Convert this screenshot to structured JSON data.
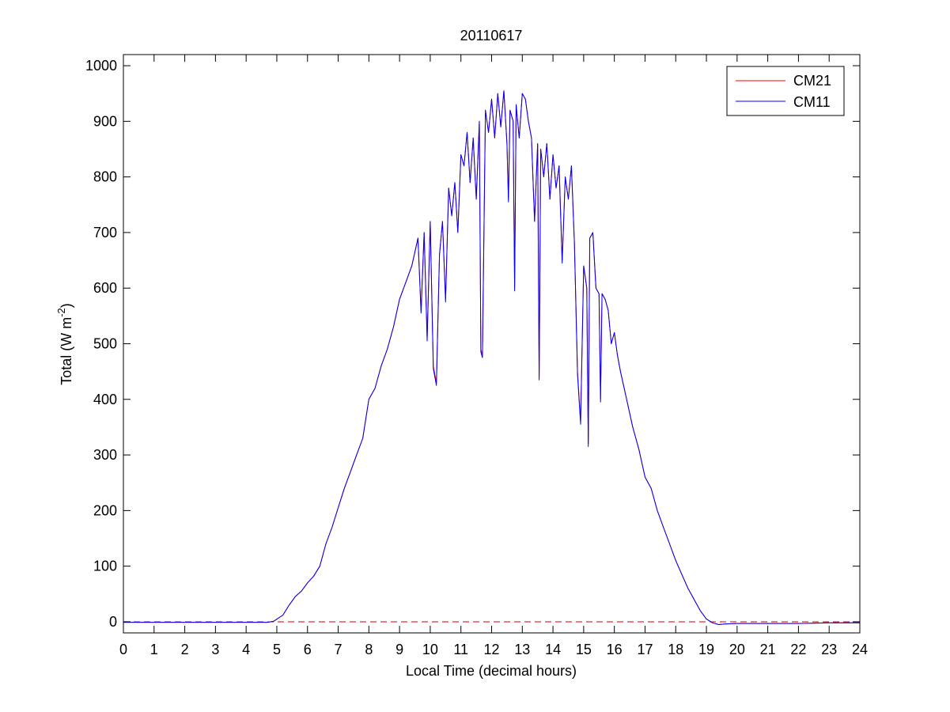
{
  "chart_data": {
    "type": "line",
    "title": "20110617",
    "xlabel": "Local Time (decimal hours)",
    "ylabel": {
      "base": "Total (W m",
      "superscript": "-2",
      "suffix": ")"
    },
    "xlim": [
      0,
      24
    ],
    "ylim": [
      -20,
      1020
    ],
    "x_ticks": [
      "0",
      "1",
      "2",
      "3",
      "4",
      "5",
      "6",
      "7",
      "8",
      "9",
      "10",
      "11",
      "12",
      "13",
      "14",
      "15",
      "16",
      "17",
      "18",
      "19",
      "20",
      "21",
      "22",
      "23",
      "24"
    ],
    "y_ticks": [
      "0",
      "100",
      "200",
      "300",
      "400",
      "500",
      "600",
      "700",
      "800",
      "900",
      "1000"
    ],
    "grid": false,
    "legend_position": "top-right",
    "series": [
      {
        "name": "CM21",
        "color": "#ff0000",
        "points": [
          [
            0,
            -1
          ],
          [
            1,
            -1
          ],
          [
            2,
            -1
          ],
          [
            3,
            -1
          ],
          [
            4,
            -1
          ],
          [
            4.7,
            -1
          ],
          [
            4.9,
            1
          ],
          [
            5.2,
            12
          ],
          [
            5.4,
            30
          ],
          [
            5.6,
            45
          ],
          [
            5.8,
            55
          ],
          [
            6.0,
            70
          ],
          [
            6.2,
            82
          ],
          [
            6.4,
            100
          ],
          [
            6.6,
            140
          ],
          [
            6.8,
            170
          ],
          [
            7.0,
            205
          ],
          [
            7.2,
            240
          ],
          [
            7.4,
            270
          ],
          [
            7.6,
            300
          ],
          [
            7.8,
            330
          ],
          [
            8.0,
            400
          ],
          [
            8.2,
            420
          ],
          [
            8.4,
            460
          ],
          [
            8.6,
            490
          ],
          [
            8.8,
            530
          ],
          [
            9.0,
            580
          ],
          [
            9.2,
            610
          ],
          [
            9.4,
            640
          ],
          [
            9.6,
            690
          ],
          [
            9.7,
            560
          ],
          [
            9.8,
            700
          ],
          [
            9.9,
            510
          ],
          [
            10.0,
            720
          ],
          [
            10.1,
            460
          ],
          [
            10.2,
            430
          ],
          [
            10.3,
            660
          ],
          [
            10.4,
            720
          ],
          [
            10.5,
            580
          ],
          [
            10.6,
            780
          ],
          [
            10.7,
            730
          ],
          [
            10.8,
            790
          ],
          [
            10.9,
            700
          ],
          [
            11.0,
            840
          ],
          [
            11.1,
            820
          ],
          [
            11.2,
            880
          ],
          [
            11.3,
            790
          ],
          [
            11.4,
            870
          ],
          [
            11.5,
            760
          ],
          [
            11.6,
            900
          ],
          [
            11.65,
            490
          ],
          [
            11.7,
            480
          ],
          [
            11.8,
            920
          ],
          [
            11.9,
            880
          ],
          [
            12.0,
            940
          ],
          [
            12.1,
            870
          ],
          [
            12.2,
            950
          ],
          [
            12.3,
            890
          ],
          [
            12.4,
            955
          ],
          [
            12.5,
            860
          ],
          [
            12.55,
            760
          ],
          [
            12.6,
            920
          ],
          [
            12.7,
            900
          ],
          [
            12.75,
            600
          ],
          [
            12.8,
            930
          ],
          [
            12.9,
            870
          ],
          [
            13.0,
            950
          ],
          [
            13.1,
            940
          ],
          [
            13.2,
            900
          ],
          [
            13.3,
            870
          ],
          [
            13.4,
            720
          ],
          [
            13.5,
            860
          ],
          [
            13.55,
            440
          ],
          [
            13.6,
            850
          ],
          [
            13.7,
            800
          ],
          [
            13.8,
            860
          ],
          [
            13.9,
            760
          ],
          [
            14.0,
            840
          ],
          [
            14.1,
            780
          ],
          [
            14.2,
            820
          ],
          [
            14.3,
            650
          ],
          [
            14.4,
            800
          ],
          [
            14.5,
            760
          ],
          [
            14.6,
            820
          ],
          [
            14.7,
            680
          ],
          [
            14.8,
            450
          ],
          [
            14.9,
            360
          ],
          [
            15.0,
            640
          ],
          [
            15.1,
            600
          ],
          [
            15.15,
            320
          ],
          [
            15.2,
            690
          ],
          [
            15.3,
            700
          ],
          [
            15.4,
            600
          ],
          [
            15.5,
            590
          ],
          [
            15.55,
            400
          ],
          [
            15.6,
            590
          ],
          [
            15.7,
            580
          ],
          [
            15.8,
            560
          ],
          [
            15.9,
            500
          ],
          [
            16.0,
            520
          ],
          [
            16.1,
            480
          ],
          [
            16.2,
            450
          ],
          [
            16.4,
            400
          ],
          [
            16.6,
            350
          ],
          [
            16.8,
            310
          ],
          [
            17.0,
            260
          ],
          [
            17.2,
            240
          ],
          [
            17.4,
            200
          ],
          [
            17.6,
            170
          ],
          [
            17.8,
            140
          ],
          [
            18.0,
            110
          ],
          [
            18.2,
            85
          ],
          [
            18.4,
            60
          ],
          [
            18.6,
            40
          ],
          [
            18.8,
            20
          ],
          [
            19.0,
            5
          ],
          [
            19.2,
            -2
          ],
          [
            19.4,
            -5
          ],
          [
            19.6,
            -4
          ],
          [
            20,
            -3
          ],
          [
            21,
            -3
          ],
          [
            22,
            -3
          ],
          [
            23,
            -2
          ],
          [
            24,
            -2
          ]
        ]
      },
      {
        "name": "CM11",
        "color": "#0000ff",
        "points": [
          [
            0,
            -1
          ],
          [
            1,
            -1
          ],
          [
            2,
            -1
          ],
          [
            3,
            -1
          ],
          [
            4,
            -1
          ],
          [
            4.7,
            -1
          ],
          [
            4.9,
            1
          ],
          [
            5.2,
            12
          ],
          [
            5.4,
            30
          ],
          [
            5.6,
            45
          ],
          [
            5.8,
            55
          ],
          [
            6.0,
            70
          ],
          [
            6.2,
            82
          ],
          [
            6.4,
            100
          ],
          [
            6.6,
            140
          ],
          [
            6.8,
            170
          ],
          [
            7.0,
            205
          ],
          [
            7.2,
            240
          ],
          [
            7.4,
            270
          ],
          [
            7.6,
            300
          ],
          [
            7.8,
            330
          ],
          [
            8.0,
            400
          ],
          [
            8.2,
            420
          ],
          [
            8.4,
            460
          ],
          [
            8.6,
            490
          ],
          [
            8.8,
            530
          ],
          [
            9.0,
            580
          ],
          [
            9.2,
            610
          ],
          [
            9.4,
            640
          ],
          [
            9.6,
            690
          ],
          [
            9.7,
            555
          ],
          [
            9.8,
            700
          ],
          [
            9.9,
            505
          ],
          [
            10.0,
            720
          ],
          [
            10.1,
            455
          ],
          [
            10.2,
            425
          ],
          [
            10.3,
            660
          ],
          [
            10.4,
            720
          ],
          [
            10.5,
            575
          ],
          [
            10.6,
            780
          ],
          [
            10.7,
            730
          ],
          [
            10.8,
            790
          ],
          [
            10.9,
            700
          ],
          [
            11.0,
            840
          ],
          [
            11.1,
            820
          ],
          [
            11.2,
            880
          ],
          [
            11.3,
            790
          ],
          [
            11.4,
            870
          ],
          [
            11.5,
            760
          ],
          [
            11.6,
            900
          ],
          [
            11.65,
            485
          ],
          [
            11.7,
            475
          ],
          [
            11.8,
            920
          ],
          [
            11.9,
            880
          ],
          [
            12.0,
            940
          ],
          [
            12.1,
            870
          ],
          [
            12.2,
            950
          ],
          [
            12.3,
            890
          ],
          [
            12.4,
            955
          ],
          [
            12.5,
            860
          ],
          [
            12.55,
            755
          ],
          [
            12.6,
            920
          ],
          [
            12.7,
            900
          ],
          [
            12.75,
            595
          ],
          [
            12.8,
            930
          ],
          [
            12.9,
            870
          ],
          [
            13.0,
            950
          ],
          [
            13.1,
            940
          ],
          [
            13.2,
            900
          ],
          [
            13.3,
            870
          ],
          [
            13.4,
            720
          ],
          [
            13.5,
            860
          ],
          [
            13.55,
            435
          ],
          [
            13.6,
            850
          ],
          [
            13.7,
            800
          ],
          [
            13.8,
            860
          ],
          [
            13.9,
            760
          ],
          [
            14.0,
            840
          ],
          [
            14.1,
            780
          ],
          [
            14.2,
            820
          ],
          [
            14.3,
            645
          ],
          [
            14.4,
            800
          ],
          [
            14.5,
            760
          ],
          [
            14.6,
            820
          ],
          [
            14.7,
            680
          ],
          [
            14.8,
            445
          ],
          [
            14.9,
            355
          ],
          [
            15.0,
            640
          ],
          [
            15.1,
            600
          ],
          [
            15.15,
            315
          ],
          [
            15.2,
            690
          ],
          [
            15.3,
            700
          ],
          [
            15.4,
            600
          ],
          [
            15.5,
            590
          ],
          [
            15.55,
            395
          ],
          [
            15.6,
            590
          ],
          [
            15.7,
            580
          ],
          [
            15.8,
            560
          ],
          [
            15.9,
            500
          ],
          [
            16.0,
            520
          ],
          [
            16.1,
            480
          ],
          [
            16.2,
            450
          ],
          [
            16.4,
            400
          ],
          [
            16.6,
            350
          ],
          [
            16.8,
            310
          ],
          [
            17.0,
            260
          ],
          [
            17.2,
            240
          ],
          [
            17.4,
            200
          ],
          [
            17.6,
            170
          ],
          [
            17.8,
            140
          ],
          [
            18.0,
            110
          ],
          [
            18.2,
            85
          ],
          [
            18.4,
            60
          ],
          [
            18.6,
            40
          ],
          [
            18.8,
            20
          ],
          [
            19.0,
            5
          ],
          [
            19.2,
            -2
          ],
          [
            19.4,
            -5
          ],
          [
            19.6,
            -4
          ],
          [
            20,
            -3
          ],
          [
            21,
            -3
          ],
          [
            22,
            -3
          ],
          [
            23,
            -2
          ],
          [
            24,
            -2
          ]
        ]
      }
    ],
    "reference_line": {
      "y": 0,
      "style": "dashed",
      "color": "#cc0000"
    }
  }
}
